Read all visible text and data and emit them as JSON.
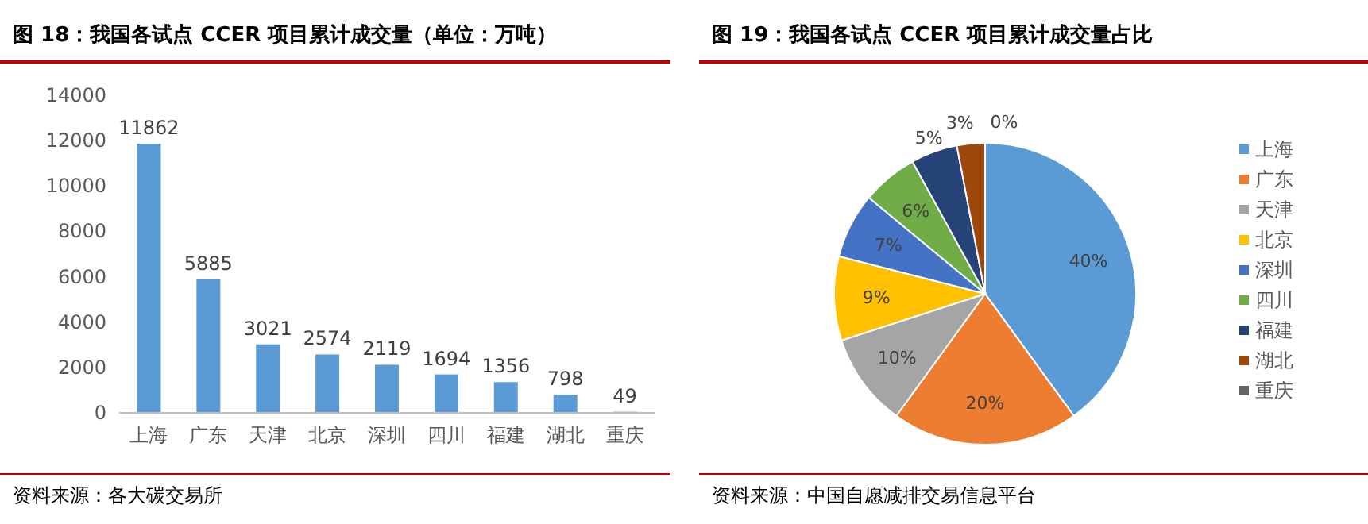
{
  "chart_data": [
    {
      "type": "bar",
      "title": "图 18：我国各试点 CCER 项目累计成交量（单位：万吨）",
      "categories": [
        "上海",
        "广东",
        "天津",
        "北京",
        "深圳",
        "四川",
        "福建",
        "湖北",
        "重庆"
      ],
      "values": [
        11862,
        5885,
        3021,
        2574,
        2119,
        1694,
        1356,
        798,
        49
      ],
      "color": "#5b9bd5",
      "ylim": [
        0,
        14000
      ],
      "yticks": [
        0,
        2000,
        4000,
        6000,
        8000,
        10000,
        12000,
        14000
      ],
      "grid": false,
      "data_labels": true,
      "annotations": [
        "资料来源：各大碳交易所"
      ]
    },
    {
      "type": "pie",
      "title": "图 19：我国各试点 CCER 项目累计成交量占比",
      "categories": [
        "上海",
        "广东",
        "天津",
        "北京",
        "深圳",
        "四川",
        "福建",
        "湖北",
        "重庆"
      ],
      "values": [
        40,
        20,
        10,
        9,
        7,
        6,
        5,
        3,
        0
      ],
      "colors": [
        "#5b9bd5",
        "#ed7d31",
        "#a5a5a5",
        "#ffc000",
        "#4472c4",
        "#70ad47",
        "#264478",
        "#9e480e",
        "#636363"
      ],
      "value_labels": [
        "40%",
        "20%",
        "10%",
        "9%",
        "7%",
        "6%",
        "5%",
        "3%",
        "0%"
      ],
      "legend": "right",
      "annotations": [
        "资料来源：中国自愿减排交易信息平台"
      ]
    }
  ]
}
